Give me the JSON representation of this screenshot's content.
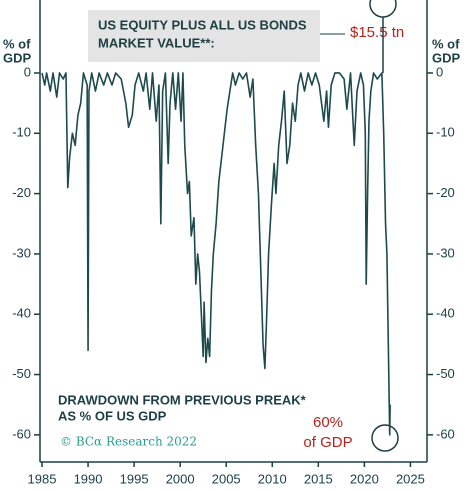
{
  "chart_data": {
    "type": "line",
    "title_lines": [
      "US EQUITY PLUS ALL US BONDS",
      "MARKET VALUE**:"
    ],
    "top_annotation": "$15.5 tn",
    "ylabel_lines": [
      "% of",
      "GDP"
    ],
    "note_lines": [
      "DRAWDOWN FROM PREVIOUS PREAK*",
      "AS % OF US GDP"
    ],
    "source": "© BCα Research 2022",
    "end_annotation_lines": [
      "60%",
      "of GDP"
    ],
    "xlim": [
      1985,
      2026.8
    ],
    "xticks": [
      1985,
      1990,
      1995,
      2000,
      2005,
      2010,
      2015,
      2020,
      2025
    ],
    "ylim": [
      -64.5,
      12.1
    ],
    "yticks": [
      0,
      -10,
      -20,
      -30,
      -40,
      -50,
      -60
    ],
    "series": [
      {
        "color": "#1d4a4c",
        "x": [
          1985.0,
          1985.3,
          1985.5,
          1985.9,
          1986.2,
          1986.6,
          1986.9,
          1987.3,
          1987.6,
          1987.8,
          1988.0,
          1988.3,
          1988.6,
          1988.9,
          1989.2,
          1989.5,
          1989.9,
          1990.0,
          1990.1,
          1990.4,
          1990.8,
          1991.2,
          1991.7,
          1992.1,
          1992.6,
          1993.0,
          1993.6,
          1994.1,
          1994.4,
          1994.8,
          1995.1,
          1995.5,
          1996.0,
          1996.3,
          1996.7,
          1997.0,
          1997.4,
          1997.7,
          1997.9,
          1998.1,
          1998.4,
          1998.7,
          1998.9,
          1999.2,
          1999.5,
          1999.8,
          2000.1,
          2000.3,
          2000.5,
          2000.8,
          2001.0,
          2001.2,
          2001.5,
          2001.7,
          2001.9,
          2002.1,
          2002.3,
          2002.5,
          2002.6,
          2002.8,
          2003.0,
          2003.2,
          2003.4,
          2003.6,
          2003.9,
          2004.2,
          2004.5,
          2004.8,
          2005.1,
          2005.4,
          2005.7,
          2006.0,
          2006.4,
          2006.8,
          2007.2,
          2007.6,
          2007.9,
          2008.2,
          2008.5,
          2008.8,
          2009.0,
          2009.2,
          2009.4,
          2009.6,
          2009.9,
          2010.2,
          2010.4,
          2010.7,
          2011.0,
          2011.3,
          2011.6,
          2011.9,
          2012.2,
          2012.5,
          2012.8,
          2013.1,
          2013.5,
          2013.9,
          2014.3,
          2014.7,
          2015.1,
          2015.6,
          2015.9,
          2016.1,
          2016.4,
          2016.8,
          2017.3,
          2017.8,
          2018.1,
          2018.5,
          2018.9,
          2019.2,
          2019.6,
          2019.9,
          2020.1,
          2020.2,
          2020.35,
          2020.5,
          2020.7,
          2021.0,
          2021.4,
          2021.9,
          2022.1,
          2022.3,
          2022.45,
          2022.6,
          2022.75,
          2022.8
        ],
        "values": [
          0,
          -2,
          0,
          -3,
          0,
          -4,
          0,
          -1,
          0,
          -19,
          -14,
          -10,
          -12,
          -7,
          -5,
          0,
          -2,
          -46,
          -3,
          0,
          -3,
          0,
          -2,
          0,
          -2,
          0,
          -1,
          -5,
          -9,
          -7,
          -2,
          0,
          -3,
          0,
          -6,
          0,
          -8,
          -2,
          -25,
          -3,
          0,
          -15,
          -5,
          0,
          -6,
          0,
          -8,
          0,
          -12,
          -20,
          -18,
          -27,
          -24,
          -35,
          -30,
          -33,
          -40,
          -47,
          -38,
          -48,
          -44,
          -47,
          -36,
          -30,
          -25,
          -18,
          -14,
          -10,
          -6,
          -3,
          0,
          -2,
          0,
          -1,
          0,
          -4,
          -1,
          -12,
          -20,
          -35,
          -45,
          -49,
          -40,
          -30,
          -22,
          -15,
          -20,
          -12,
          -8,
          -3,
          -15,
          -12,
          -5,
          -8,
          -2,
          0,
          -3,
          0,
          -2,
          0,
          -2,
          -8,
          -3,
          -9,
          -2,
          0,
          0,
          -1,
          -6,
          0,
          -12,
          -3,
          0,
          -2,
          -10,
          -35,
          -20,
          -8,
          -3,
          0,
          -1,
          0,
          -10,
          -25,
          -30,
          -45,
          -60,
          -55
        ]
      }
    ]
  }
}
